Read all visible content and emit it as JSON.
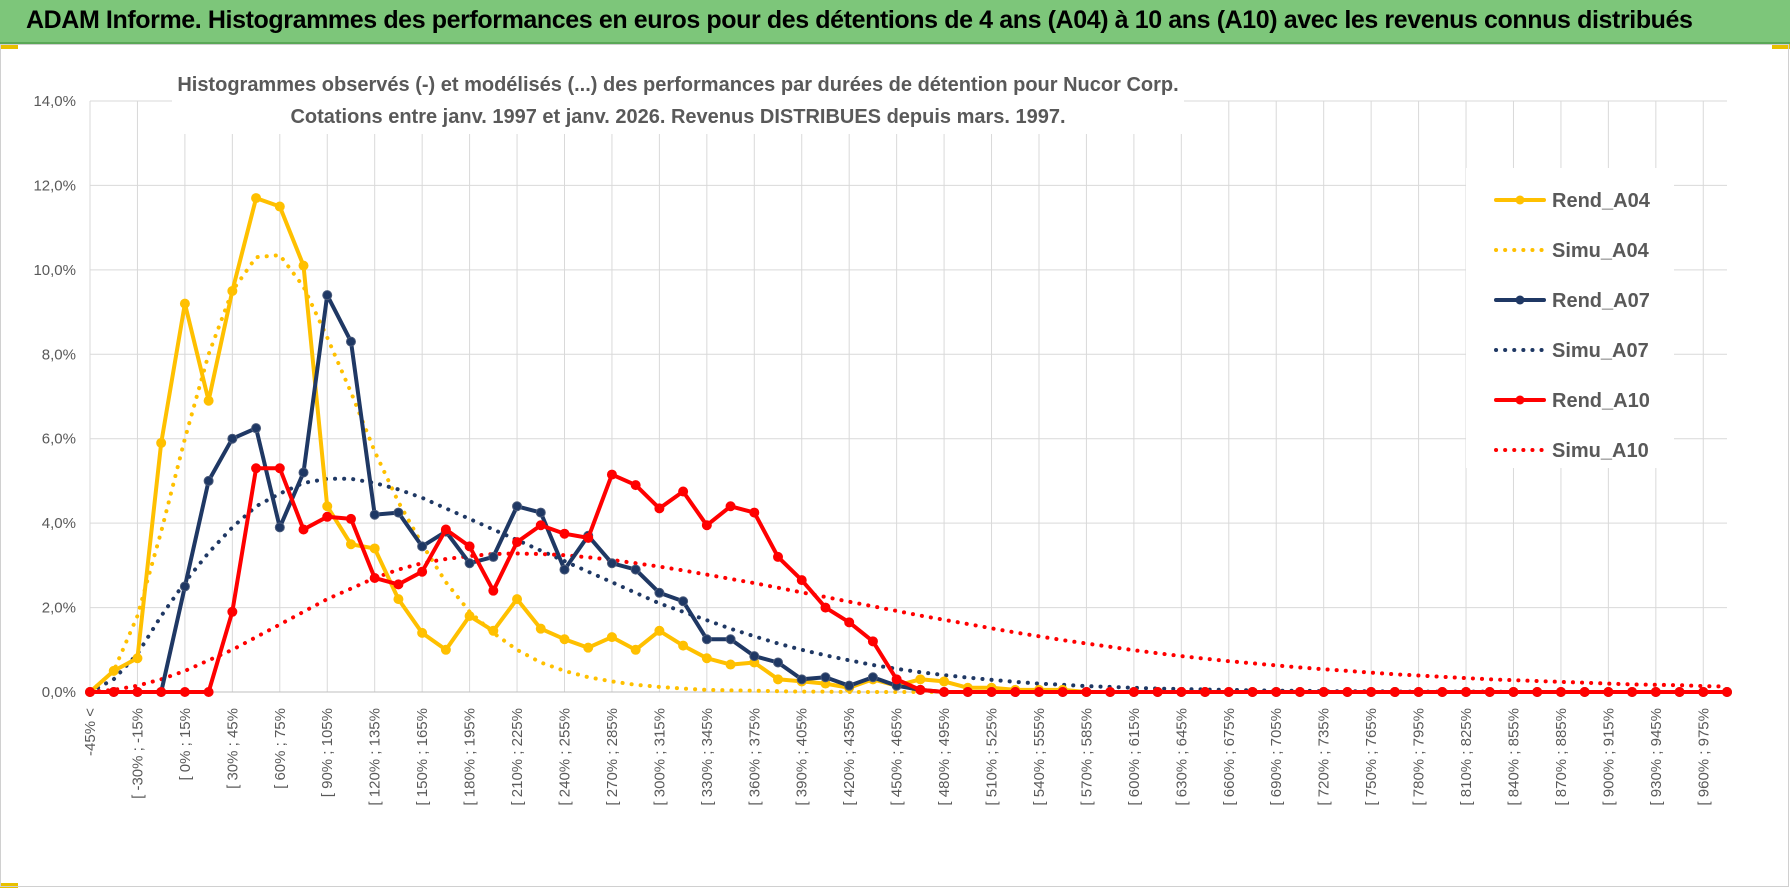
{
  "banner": {
    "title": "ADAM Informe. Histogrammes des performances en euros pour des détentions de 4 ans (A04) à 10 ans (A10) avec les revenus connus distribués"
  },
  "colors": {
    "banner_bg": "#7dc67a",
    "grid": "#d9d9d9",
    "axis_text": "#595959",
    "accent": "#e8c000"
  },
  "chart_data": {
    "type": "line",
    "title": "Histogrammes observés (-) et modélisés (...) des performances par durées de détention pour Nucor Corp.",
    "subtitle": "Cotations entre janv. 1997 et janv. 2026. Revenus DISTRIBUES depuis mars. 1997.",
    "xlabel": "",
    "ylabel": "",
    "ylim": [
      0,
      14
    ],
    "y_ticks": [
      "0,0%",
      "2,0%",
      "4,0%",
      "6,0%",
      "8,0%",
      "10,0%",
      "12,0%",
      "14,0%"
    ],
    "y_unit": "%",
    "grid": true,
    "legend_position": "right",
    "x_tick_labels": [
      "-45% <",
      "[ -30% ; -15%",
      "[ 0% ; 15%",
      "[ 30% ; 45%",
      "[ 60% ; 75%",
      "[ 90% ; 105%",
      "[ 120% ; 135%",
      "[ 150% ; 165%",
      "[ 180% ; 195%",
      "[ 210% ; 225%",
      "[ 240% ; 255%",
      "[ 270% ; 285%",
      "[ 300% ; 315%",
      "[ 330% ; 345%",
      "[ 360% ; 375%",
      "[ 390% ; 405%",
      "[ 420% ; 435%",
      "[ 450% ; 465%",
      "[ 480% ; 495%",
      "[ 510% ; 525%",
      "[ 540% ; 555%",
      "[ 570% ; 585%",
      "[ 600% ; 615%",
      "[ 630% ; 645%",
      "[ 660% ; 675%",
      "[ 690% ; 705%",
      "[ 720% ; 735%",
      "[ 750% ; 765%",
      "[ 780% ; 795%",
      "[ 810% ; 825%",
      "[ 840% ; 855%",
      "[ 870% ; 885%",
      "[ 900% ; 915%",
      "[ 930% ; 945%",
      "[ 960% ; 975%"
    ],
    "series": [
      {
        "name": "Rend_A04",
        "style": "solid",
        "markers": true,
        "color": "#ffc000",
        "values": [
          0,
          0.5,
          0.8,
          5.9,
          9.2,
          6.9,
          9.5,
          11.7,
          11.5,
          10.1,
          4.4,
          3.5,
          3.4,
          2.2,
          1.4,
          1.0,
          1.8,
          1.45,
          2.2,
          1.5,
          1.25,
          1.05,
          1.3,
          1.0,
          1.45,
          1.1,
          0.8,
          0.65,
          0.7,
          0.3,
          0.25,
          0.2,
          0.1,
          0.3,
          0.15,
          0.3,
          0.25,
          0.1,
          0.1,
          0.05,
          0.05,
          0.05,
          0,
          0,
          0,
          0,
          0,
          0,
          0,
          0,
          0,
          0,
          0,
          0,
          0,
          0,
          0,
          0,
          0,
          0,
          0,
          0,
          0,
          0,
          0,
          0,
          0,
          0,
          0,
          0
        ]
      },
      {
        "name": "Simu_A04",
        "style": "dotted",
        "markers": false,
        "color": "#ffc000",
        "values": [
          0,
          0.5,
          1.8,
          3.8,
          6.0,
          8.0,
          9.5,
          10.3,
          10.35,
          9.6,
          8.4,
          7.1,
          5.7,
          4.5,
          3.5,
          2.6,
          1.9,
          1.4,
          1.0,
          0.7,
          0.5,
          0.35,
          0.25,
          0.17,
          0.12,
          0.08,
          0.05,
          0.04,
          0.03,
          0.02,
          0.01,
          0.01,
          0,
          0,
          0,
          0,
          0,
          0,
          0,
          0,
          0,
          0,
          0,
          0,
          0,
          0,
          0,
          0,
          0,
          0,
          0,
          0,
          0,
          0,
          0,
          0,
          0,
          0,
          0,
          0,
          0,
          0,
          0,
          0,
          0,
          0,
          0,
          0,
          0,
          0
        ]
      },
      {
        "name": "Rend_A07",
        "style": "solid",
        "markers": true,
        "color": "#1f3864",
        "values": [
          0,
          0,
          0,
          0,
          2.5,
          5.0,
          6.0,
          6.25,
          3.9,
          5.2,
          9.4,
          8.3,
          4.2,
          4.25,
          3.45,
          3.8,
          3.05,
          3.2,
          4.4,
          4.25,
          2.9,
          3.7,
          3.05,
          2.9,
          2.35,
          2.15,
          1.25,
          1.25,
          0.85,
          0.7,
          0.3,
          0.35,
          0.15,
          0.35,
          0.15,
          0.05,
          0,
          0,
          0,
          0,
          0,
          0,
          0,
          0,
          0,
          0,
          0,
          0,
          0,
          0,
          0,
          0,
          0,
          0,
          0,
          0,
          0,
          0,
          0,
          0,
          0,
          0,
          0,
          0,
          0,
          0,
          0,
          0,
          0,
          0
        ]
      },
      {
        "name": "Simu_A07",
        "style": "dotted",
        "markers": false,
        "color": "#1f3864",
        "values": [
          0,
          0.3,
          0.9,
          1.8,
          2.6,
          3.3,
          3.9,
          4.4,
          4.7,
          4.95,
          5.05,
          5.05,
          4.95,
          4.8,
          4.6,
          4.35,
          4.1,
          3.85,
          3.6,
          3.35,
          3.1,
          2.85,
          2.6,
          2.35,
          2.1,
          1.9,
          1.7,
          1.5,
          1.32,
          1.15,
          1.0,
          0.87,
          0.75,
          0.64,
          0.55,
          0.47,
          0.4,
          0.34,
          0.29,
          0.24,
          0.2,
          0.17,
          0.14,
          0.12,
          0.1,
          0.08,
          0.07,
          0.06,
          0.05,
          0.04,
          0.03,
          0.03,
          0.02,
          0.02,
          0.02,
          0.01,
          0.01,
          0.01,
          0.01,
          0.01,
          0,
          0,
          0,
          0,
          0,
          0,
          0,
          0,
          0,
          0
        ]
      },
      {
        "name": "Rend_A10",
        "style": "solid",
        "markers": true,
        "color": "#ff0000",
        "values": [
          0,
          0,
          0,
          0,
          0,
          0,
          1.9,
          5.3,
          5.3,
          3.85,
          4.15,
          4.1,
          2.7,
          2.55,
          2.85,
          3.85,
          3.45,
          2.4,
          3.55,
          3.95,
          3.75,
          3.65,
          5.15,
          4.9,
          4.35,
          4.75,
          3.95,
          4.4,
          4.25,
          3.2,
          2.65,
          2.0,
          1.65,
          1.2,
          0.3,
          0.05,
          0,
          0,
          0,
          0,
          0,
          0,
          0,
          0,
          0,
          0,
          0,
          0,
          0,
          0,
          0,
          0,
          0,
          0,
          0,
          0,
          0,
          0,
          0,
          0,
          0,
          0,
          0,
          0,
          0,
          0,
          0,
          0,
          0,
          0
        ]
      },
      {
        "name": "Simu_A10",
        "style": "dotted",
        "markers": false,
        "color": "#ff0000",
        "values": [
          0,
          0.05,
          0.15,
          0.3,
          0.5,
          0.75,
          1.0,
          1.3,
          1.6,
          1.9,
          2.2,
          2.45,
          2.7,
          2.9,
          3.05,
          3.15,
          3.22,
          3.27,
          3.28,
          3.27,
          3.24,
          3.19,
          3.13,
          3.05,
          2.97,
          2.88,
          2.78,
          2.68,
          2.58,
          2.47,
          2.36,
          2.25,
          2.14,
          2.03,
          1.92,
          1.81,
          1.71,
          1.61,
          1.51,
          1.41,
          1.32,
          1.23,
          1.15,
          1.07,
          0.99,
          0.92,
          0.85,
          0.79,
          0.73,
          0.68,
          0.63,
          0.58,
          0.54,
          0.5,
          0.46,
          0.42,
          0.39,
          0.36,
          0.33,
          0.3,
          0.28,
          0.26,
          0.24,
          0.22,
          0.2,
          0.18,
          0.17,
          0.16,
          0.14,
          0.13
        ]
      }
    ]
  }
}
